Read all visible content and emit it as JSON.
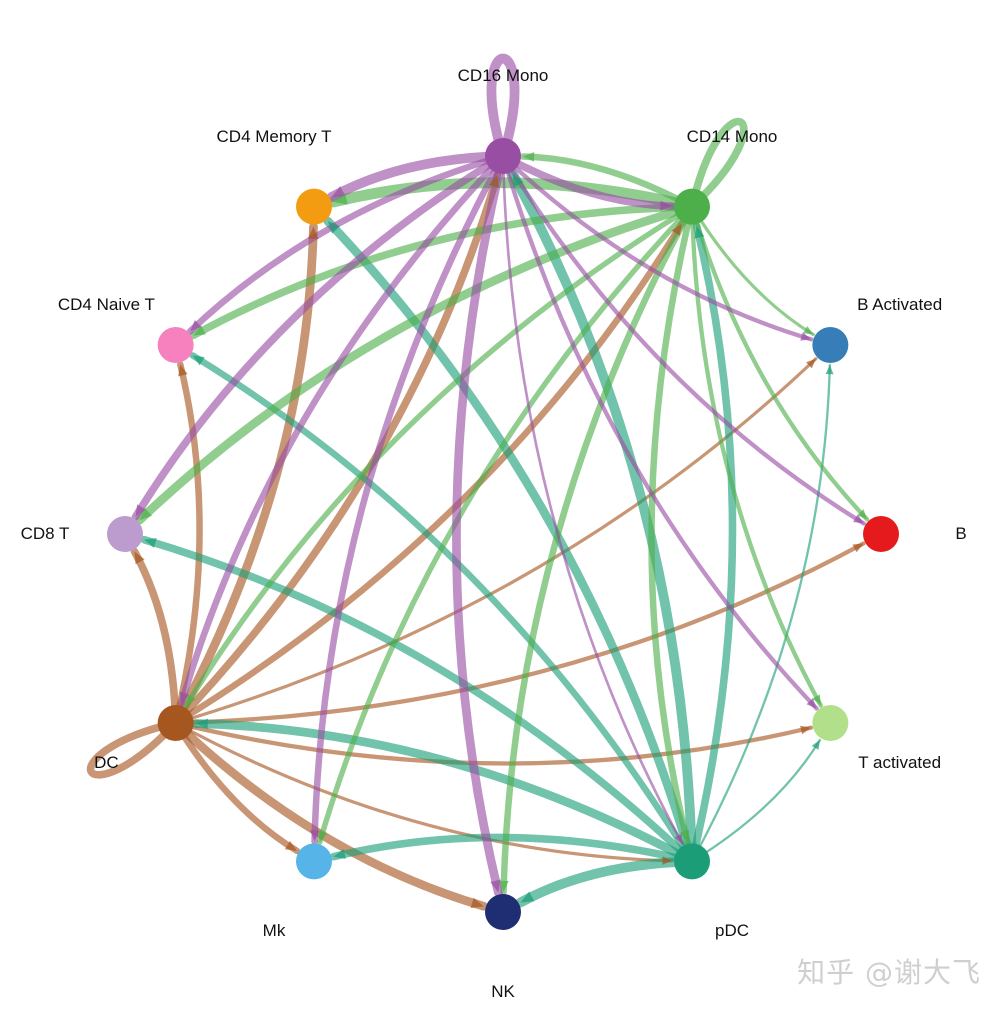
{
  "nodes": [
    {
      "name": "CD16 Mono",
      "color": "#984EA3"
    },
    {
      "name": "CD14 Mono",
      "color": "#4DAF4A"
    },
    {
      "name": "B Activated",
      "color": "#377EB8"
    },
    {
      "name": "B",
      "color": "#E41A1C"
    },
    {
      "name": "T activated",
      "color": "#B2DF8A"
    },
    {
      "name": "pDC",
      "color": "#1B9E77"
    },
    {
      "name": "NK",
      "color": "#1F2D73"
    },
    {
      "name": "Mk",
      "color": "#56B4E9"
    },
    {
      "name": "DC",
      "color": "#A6561F"
    },
    {
      "name": "CD8 T",
      "color": "#BC9BCF"
    },
    {
      "name": "CD4 Naive T",
      "color": "#F781BF"
    },
    {
      "name": "CD4 Memory T",
      "color": "#F39C12"
    }
  ],
  "edges": [
    {
      "from": "CD16 Mono",
      "to": "CD16 Mono",
      "weight": 8
    },
    {
      "from": "CD16 Mono",
      "to": "CD4 Memory T",
      "weight": 8
    },
    {
      "from": "CD16 Mono",
      "to": "CD14 Mono",
      "weight": 6
    },
    {
      "from": "CD16 Mono",
      "to": "CD4 Naive T",
      "weight": 5
    },
    {
      "from": "CD16 Mono",
      "to": "CD8 T",
      "weight": 6
    },
    {
      "from": "CD16 Mono",
      "to": "DC",
      "weight": 5
    },
    {
      "from": "CD16 Mono",
      "to": "Mk",
      "weight": 5
    },
    {
      "from": "CD16 Mono",
      "to": "NK",
      "weight": 7
    },
    {
      "from": "CD16 Mono",
      "to": "pDC",
      "weight": 1.5
    },
    {
      "from": "CD16 Mono",
      "to": "B Activated",
      "weight": 3
    },
    {
      "from": "CD16 Mono",
      "to": "B",
      "weight": 3
    },
    {
      "from": "CD16 Mono",
      "to": "T activated",
      "weight": 3
    },
    {
      "from": "CD14 Mono",
      "to": "CD14 Mono",
      "weight": 6
    },
    {
      "from": "CD14 Mono",
      "to": "CD4 Memory T",
      "weight": 9
    },
    {
      "from": "CD14 Mono",
      "to": "CD16 Mono",
      "weight": 5
    },
    {
      "from": "CD14 Mono",
      "to": "CD4 Naive T",
      "weight": 6
    },
    {
      "from": "CD14 Mono",
      "to": "CD8 T",
      "weight": 7
    },
    {
      "from": "CD14 Mono",
      "to": "DC",
      "weight": 4
    },
    {
      "from": "CD14 Mono",
      "to": "Mk",
      "weight": 4
    },
    {
      "from": "CD14 Mono",
      "to": "NK",
      "weight": 5
    },
    {
      "from": "CD14 Mono",
      "to": "pDC",
      "weight": 5
    },
    {
      "from": "CD14 Mono",
      "to": "B Activated",
      "weight": 2
    },
    {
      "from": "CD14 Mono",
      "to": "B",
      "weight": 3
    },
    {
      "from": "CD14 Mono",
      "to": "T activated",
      "weight": 3
    },
    {
      "from": "pDC",
      "to": "CD16 Mono",
      "weight": 8
    },
    {
      "from": "pDC",
      "to": "CD14 Mono",
      "weight": 6
    },
    {
      "from": "pDC",
      "to": "CD4 Memory T",
      "weight": 7
    },
    {
      "from": "pDC",
      "to": "CD4 Naive T",
      "weight": 5
    },
    {
      "from": "pDC",
      "to": "CD8 T",
      "weight": 6
    },
    {
      "from": "pDC",
      "to": "DC",
      "weight": 7
    },
    {
      "from": "pDC",
      "to": "Mk",
      "weight": 6
    },
    {
      "from": "pDC",
      "to": "NK",
      "weight": 8
    },
    {
      "from": "pDC",
      "to": "T activated",
      "weight": 1.2
    },
    {
      "from": "pDC",
      "to": "B Activated",
      "weight": 1.2
    },
    {
      "from": "DC",
      "to": "DC",
      "weight": 6
    },
    {
      "from": "DC",
      "to": "CD16 Mono",
      "weight": 6
    },
    {
      "from": "DC",
      "to": "CD14 Mono",
      "weight": 5
    },
    {
      "from": "DC",
      "to": "CD4 Memory T",
      "weight": 7
    },
    {
      "from": "DC",
      "to": "CD4 Naive T",
      "weight": 5
    },
    {
      "from": "DC",
      "to": "CD8 T",
      "weight": 6
    },
    {
      "from": "DC",
      "to": "B Activated",
      "weight": 2
    },
    {
      "from": "DC",
      "to": "B",
      "weight": 3
    },
    {
      "from": "DC",
      "to": "T activated",
      "weight": 3
    },
    {
      "from": "DC",
      "to": "Mk",
      "weight": 5
    },
    {
      "from": "DC",
      "to": "NK",
      "weight": 7
    },
    {
      "from": "DC",
      "to": "pDC",
      "weight": 2
    }
  ],
  "watermark": "知乎 @谢大飞"
}
